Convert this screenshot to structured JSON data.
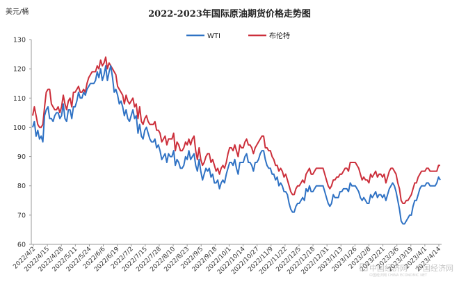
{
  "chart_data": {
    "type": "line",
    "title": "2022-2023年国际原油期货价格走势图",
    "ylabel": "美元/桶",
    "ylim": [
      60,
      130
    ],
    "yticks": [
      60,
      70,
      80,
      90,
      100,
      110,
      120,
      130
    ],
    "grid": false,
    "legend_position": "top",
    "xtick_labels": [
      "2022/4/2",
      "2022/4/15",
      "2022/4/28",
      "2022/5/11",
      "2022/5/24",
      "2022/6/6",
      "2022/6/19",
      "2022/7/2",
      "2022/7/15",
      "2022/7/28",
      "2022/8/10",
      "2022/8/23",
      "2022/9/5",
      "2022/9/18",
      "2022/10/1",
      "2022/10/14",
      "2022/10/27",
      "2022/11/9",
      "2022/11/22",
      "2022/12/5",
      "2022/12/18",
      "2022/12/31",
      "2023/1/13",
      "2023/1/26",
      "2023/2/8",
      "2023/2/21",
      "2023/3/6",
      "2023/3/19",
      "2023/4/1",
      "2023/4/14"
    ],
    "series": [
      {
        "name": "WTI",
        "color": "#2f72c4",
        "values": [
          100,
          102,
          97,
          99,
          96,
          97,
          95,
          104,
          106,
          107,
          103,
          103,
          102,
          104,
          105,
          105,
          103,
          104,
          108,
          103,
          102,
          106,
          106,
          103,
          107,
          107,
          109,
          112,
          110,
          110,
          112,
          111,
          113,
          114,
          115,
          115,
          115,
          116,
          119,
          117,
          120,
          116,
          118,
          121,
          116,
          119,
          121,
          117,
          112,
          113,
          111,
          108,
          109,
          107,
          104,
          106,
          103,
          102,
          104,
          106,
          103,
          104,
          98,
          101,
          97,
          96,
          99,
          100,
          98,
          96,
          95,
          95,
          96,
          93,
          94,
          92,
          89,
          90,
          91,
          88,
          91,
          90,
          90,
          92,
          87,
          89,
          88,
          86,
          86,
          87,
          90,
          89,
          92,
          89,
          90,
          91,
          87,
          85,
          89,
          85,
          82,
          84,
          86,
          85,
          86,
          83,
          84,
          81,
          81,
          82,
          79,
          81,
          82,
          81,
          84,
          86,
          88,
          88,
          87,
          89,
          86,
          84,
          88,
          88,
          88,
          90,
          91,
          88,
          88,
          87,
          85,
          88,
          88,
          89,
          91,
          92,
          92,
          89,
          87,
          86,
          86,
          84,
          84,
          82,
          83,
          80,
          81,
          80,
          78,
          78,
          77,
          74,
          72,
          71,
          71,
          73,
          74,
          74,
          75,
          76,
          75,
          79,
          78,
          80,
          78,
          78,
          79,
          80,
          80,
          80,
          80,
          80,
          78,
          76,
          74,
          73,
          74,
          77,
          76,
          76,
          76,
          78,
          78,
          79,
          79,
          79,
          78,
          81,
          80,
          80,
          80,
          79,
          78,
          76,
          75,
          76,
          75,
          74,
          74,
          77,
          76,
          77,
          78,
          76,
          77,
          77,
          76,
          77,
          75,
          77,
          79,
          80,
          81,
          80,
          78,
          75,
          72,
          68,
          67,
          67,
          68,
          69,
          70,
          70,
          73,
          75,
          75,
          77,
          79,
          80,
          80,
          80,
          81,
          81,
          80,
          80,
          80,
          80,
          81,
          83,
          82
        ]
      },
      {
        "name": "布伦特",
        "color": "#cc2f3b",
        "values": [
          104,
          107,
          104,
          101,
          100,
          100,
          101,
          107,
          112,
          113,
          113,
          108,
          107,
          106,
          106,
          107,
          105,
          107,
          111,
          108,
          106,
          109,
          110,
          107,
          112,
          112,
          113,
          114,
          112,
          112,
          113,
          112,
          115,
          117,
          118,
          119,
          119,
          119,
          121,
          120,
          123,
          121,
          122,
          124,
          120,
          122,
          121,
          120,
          119,
          118,
          114,
          113,
          112,
          111,
          108,
          111,
          109,
          108,
          109,
          110,
          107,
          108,
          103,
          107,
          102,
          101,
          103,
          104,
          102,
          101,
          101,
          101,
          102,
          99,
          99,
          98,
          95,
          96,
          97,
          94,
          96,
          96,
          96,
          98,
          92,
          95,
          94,
          92,
          92,
          93,
          95,
          94,
          96,
          94,
          96,
          97,
          92,
          89,
          93,
          89,
          87,
          88,
          90,
          91,
          91,
          88,
          89,
          87,
          85,
          86,
          84,
          86,
          87,
          86,
          88,
          91,
          93,
          93,
          92,
          94,
          92,
          90,
          94,
          93,
          93,
          95,
          96,
          94,
          94,
          93,
          91,
          93,
          94,
          95,
          96,
          97,
          97,
          93,
          93,
          92,
          92,
          90,
          89,
          87,
          87,
          85,
          86,
          85,
          83,
          84,
          82,
          80,
          78,
          77,
          77,
          79,
          80,
          80,
          81,
          82,
          81,
          84,
          85,
          86,
          84,
          84,
          85,
          86,
          86,
          86,
          86,
          86,
          84,
          82,
          80,
          79,
          80,
          82,
          82,
          83,
          83,
          84,
          84,
          85,
          86,
          86,
          85,
          88,
          88,
          88,
          88,
          87,
          86,
          84,
          82,
          83,
          82,
          82,
          81,
          84,
          83,
          84,
          85,
          83,
          84,
          84,
          83,
          84,
          81,
          83,
          85,
          86,
          86,
          85,
          84,
          81,
          79,
          75,
          74,
          74,
          75,
          75,
          76,
          77,
          79,
          81,
          81,
          83,
          84,
          85,
          85,
          85,
          86,
          86,
          85,
          85,
          85,
          85,
          85,
          87,
          87
        ]
      }
    ]
  },
  "watermark": {
    "name": "中国经济网",
    "tagline": "中国经济网 CHINA ECONOMIC NET",
    "logo_text": "中国经济网"
  }
}
